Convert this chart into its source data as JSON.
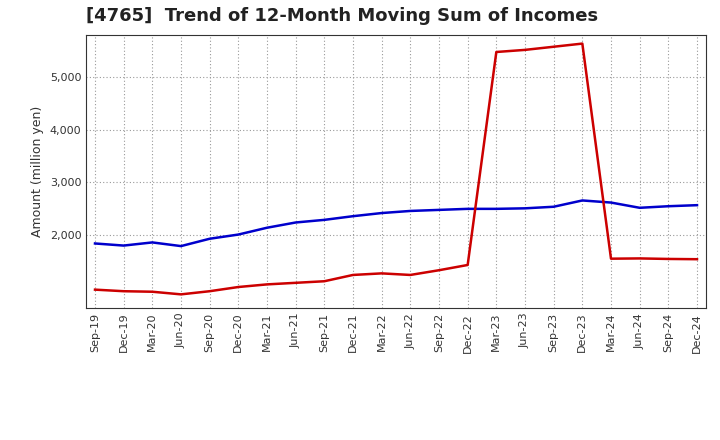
{
  "title": "[4765]  Trend of 12-Month Moving Sum of Incomes",
  "ylabel": "Amount (million yen)",
  "background_color": "#ffffff",
  "grid_color": "#999999",
  "x_labels": [
    "Sep-19",
    "Dec-19",
    "Mar-20",
    "Jun-20",
    "Sep-20",
    "Dec-20",
    "Mar-21",
    "Jun-21",
    "Sep-21",
    "Dec-21",
    "Mar-22",
    "Jun-22",
    "Sep-22",
    "Dec-22",
    "Mar-23",
    "Jun-23",
    "Sep-23",
    "Dec-23",
    "Mar-24",
    "Jun-24",
    "Sep-24",
    "Dec-24"
  ],
  "ordinary_income": [
    1830,
    1790,
    1850,
    1780,
    1920,
    2000,
    2130,
    2230,
    2280,
    2350,
    2410,
    2450,
    2470,
    2490,
    2490,
    2500,
    2530,
    2650,
    2610,
    2510,
    2540,
    2560
  ],
  "net_income": [
    950,
    920,
    910,
    860,
    920,
    1000,
    1050,
    1080,
    1110,
    1230,
    1260,
    1230,
    1320,
    1420,
    5480,
    5520,
    5580,
    5640,
    1540,
    1545,
    1535,
    1530
  ],
  "ordinary_color": "#0000cc",
  "net_color": "#cc0000",
  "ylim_min": 600,
  "ylim_max": 5800,
  "yticks": [
    2000,
    3000,
    4000,
    5000
  ],
  "line_width": 1.8,
  "title_fontsize": 13
}
